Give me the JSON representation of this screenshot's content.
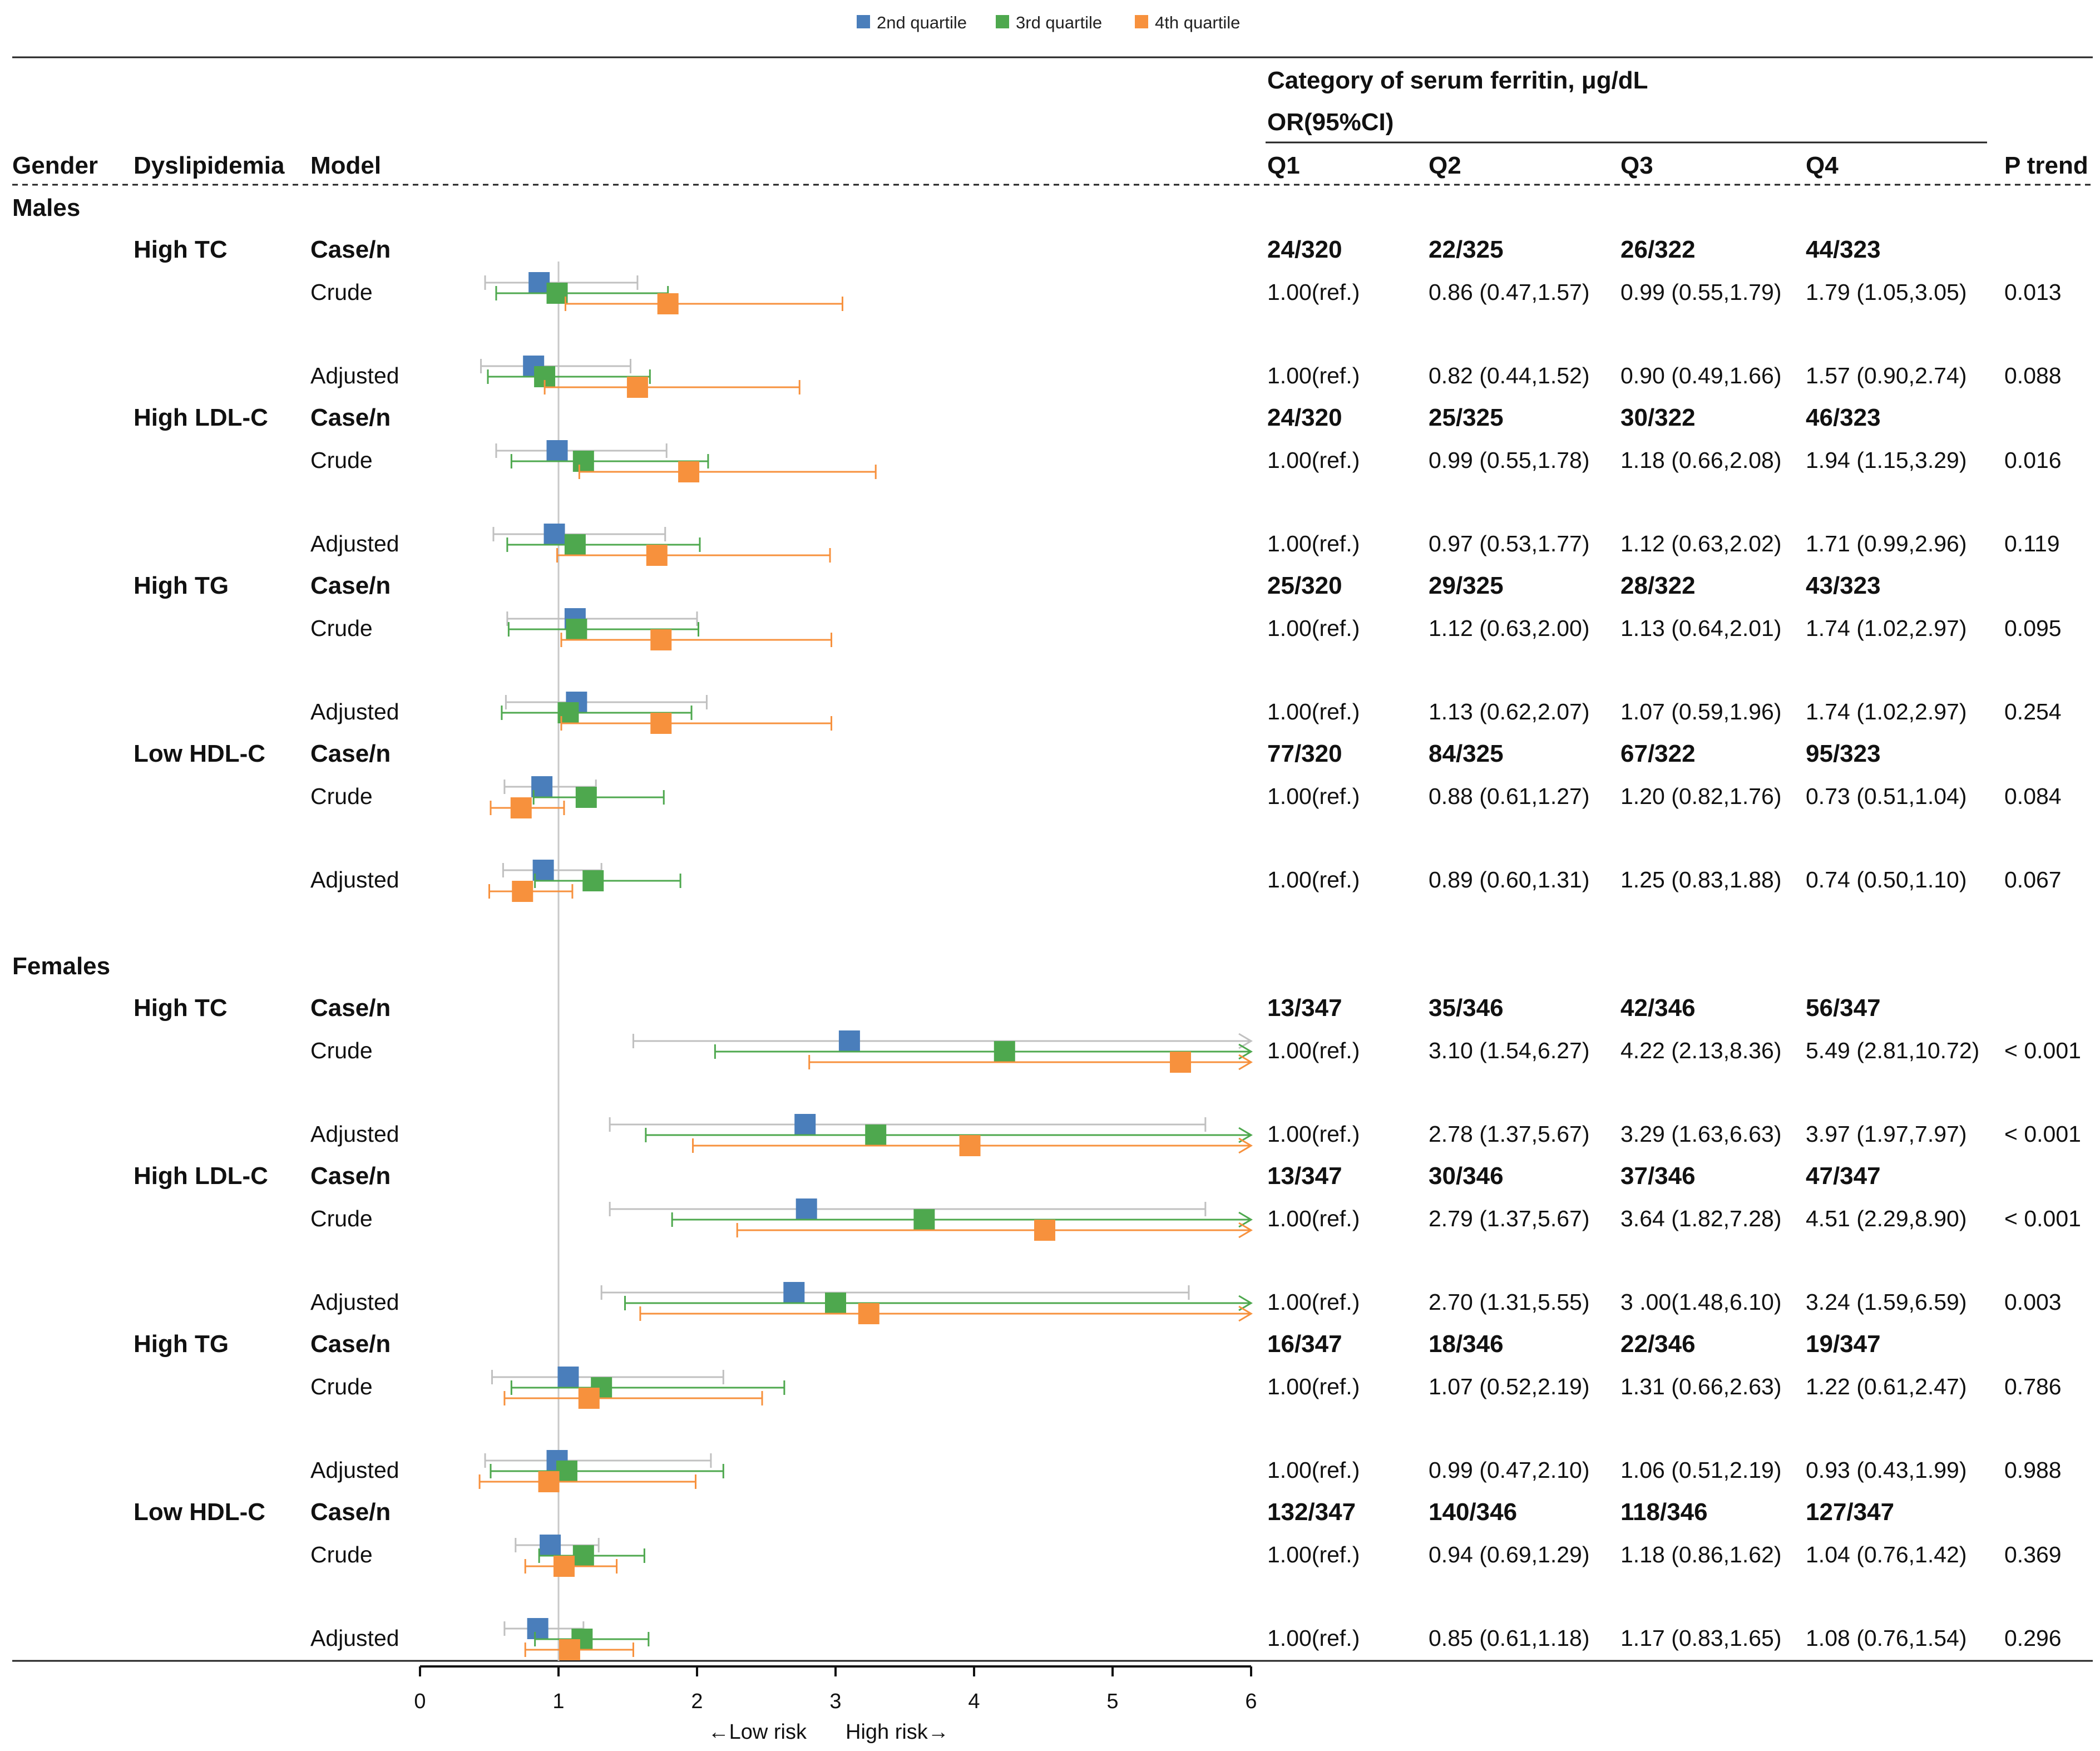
{
  "chart_data": {
    "type": "forest",
    "title": "Category of serum ferritin, μg/dL",
    "effect_label": "OR(95%CI)",
    "legend": [
      {
        "name": "2nd quartile",
        "color": "#4a7ebb"
      },
      {
        "name": "3rd quartile",
        "color": "#4ea84e"
      },
      {
        "name": "4th quartile",
        "color": "#f7913d"
      }
    ],
    "ci_colors": [
      "#c0c0c0",
      "#4ea84e",
      "#f7913d"
    ],
    "columns": {
      "gender": "Gender",
      "dyslipidemia": "Dyslipidemia",
      "model": "Model",
      "q1": "Q1",
      "q2": "Q2",
      "q3": "Q3",
      "q4": "Q4",
      "ptrend": "P trend"
    },
    "x_axis": {
      "min": 0,
      "max": 6,
      "ticks": [
        "0",
        "1",
        "2",
        "3",
        "4",
        "5",
        "6"
      ],
      "reference": 1,
      "low_label": "←Low risk",
      "high_label": "High risk→"
    },
    "groups": [
      {
        "gender": "Males",
        "outcomes": [
          {
            "name": "High TC",
            "casen": [
              "24/320",
              "22/325",
              "26/322",
              "44/323"
            ],
            "models": [
              {
                "model": "Crude",
                "ref": "1.00(ref.)",
                "q": [
                  "0.86 (0.47,1.57)",
                  "0.99 (0.55,1.79)",
                  "1.79 (1.05,3.05)"
                ],
                "p": "0.013",
                "or": [
                  0.86,
                  0.99,
                  1.79
                ],
                "lo": [
                  0.47,
                  0.55,
                  1.05
                ],
                "hi": [
                  1.57,
                  1.79,
                  3.05
                ]
              },
              {
                "model": "Adjusted",
                "ref": "1.00(ref.)",
                "q": [
                  "0.82 (0.44,1.52)",
                  "0.90 (0.49,1.66)",
                  "1.57 (0.90,2.74)"
                ],
                "p": "0.088",
                "or": [
                  0.82,
                  0.9,
                  1.57
                ],
                "lo": [
                  0.44,
                  0.49,
                  0.9
                ],
                "hi": [
                  1.52,
                  1.66,
                  2.74
                ]
              }
            ]
          },
          {
            "name": "High LDL-C",
            "casen": [
              "24/320",
              "25/325",
              "30/322",
              "46/323"
            ],
            "models": [
              {
                "model": "Crude",
                "ref": "1.00(ref.)",
                "q": [
                  "0.99 (0.55,1.78)",
                  "1.18 (0.66,2.08)",
                  "1.94 (1.15,3.29)"
                ],
                "p": "0.016",
                "or": [
                  0.99,
                  1.18,
                  1.94
                ],
                "lo": [
                  0.55,
                  0.66,
                  1.15
                ],
                "hi": [
                  1.78,
                  2.08,
                  3.29
                ]
              },
              {
                "model": "Adjusted",
                "ref": "1.00(ref.)",
                "q": [
                  "0.97 (0.53,1.77)",
                  "1.12 (0.63,2.02)",
                  "1.71 (0.99,2.96)"
                ],
                "p": "0.119",
                "or": [
                  0.97,
                  1.12,
                  1.71
                ],
                "lo": [
                  0.53,
                  0.63,
                  0.99
                ],
                "hi": [
                  1.77,
                  2.02,
                  2.96
                ]
              }
            ]
          },
          {
            "name": "High TG",
            "casen": [
              "25/320",
              "29/325",
              "28/322",
              "43/323"
            ],
            "models": [
              {
                "model": "Crude",
                "ref": "1.00(ref.)",
                "q": [
                  "1.12 (0.63,2.00)",
                  "1.13 (0.64,2.01)",
                  "1.74 (1.02,2.97)"
                ],
                "p": "0.095",
                "or": [
                  1.12,
                  1.13,
                  1.74
                ],
                "lo": [
                  0.63,
                  0.64,
                  1.02
                ],
                "hi": [
                  2.0,
                  2.01,
                  2.97
                ]
              },
              {
                "model": "Adjusted",
                "ref": "1.00(ref.)",
                "q": [
                  "1.13 (0.62,2.07)",
                  "1.07 (0.59,1.96)",
                  "1.74 (1.02,2.97)"
                ],
                "p": "0.254",
                "or": [
                  1.13,
                  1.07,
                  1.74
                ],
                "lo": [
                  0.62,
                  0.59,
                  1.02
                ],
                "hi": [
                  2.07,
                  1.96,
                  2.97
                ]
              }
            ]
          },
          {
            "name": "Low HDL-C",
            "casen": [
              "77/320",
              "84/325",
              "67/322",
              "95/323"
            ],
            "models": [
              {
                "model": "Crude",
                "ref": "1.00(ref.)",
                "q": [
                  "0.88 (0.61,1.27)",
                  "1.20 (0.82,1.76)",
                  "0.73 (0.51,1.04)"
                ],
                "p": "0.084",
                "or": [
                  0.88,
                  1.2,
                  0.73
                ],
                "lo": [
                  0.61,
                  0.82,
                  0.51
                ],
                "hi": [
                  1.27,
                  1.76,
                  1.04
                ]
              },
              {
                "model": "Adjusted",
                "ref": "1.00(ref.)",
                "q": [
                  "0.89 (0.60,1.31)",
                  "1.25 (0.83,1.88)",
                  "0.74 (0.50,1.10)"
                ],
                "p": "0.067",
                "or": [
                  0.89,
                  1.25,
                  0.74
                ],
                "lo": [
                  0.6,
                  0.83,
                  0.5
                ],
                "hi": [
                  1.31,
                  1.88,
                  1.1
                ]
              }
            ]
          }
        ]
      },
      {
        "gender": "Females",
        "outcomes": [
          {
            "name": "High TC",
            "casen": [
              "13/347",
              "35/346",
              "42/346",
              "56/347"
            ],
            "models": [
              {
                "model": "Crude",
                "ref": "1.00(ref.)",
                "q": [
                  "3.10 (1.54,6.27)",
                  "4.22 (2.13,8.36)",
                  "5.49 (2.81,10.72)"
                ],
                "p": "< 0.001",
                "or": [
                  3.1,
                  4.22,
                  5.49
                ],
                "lo": [
                  1.54,
                  2.13,
                  2.81
                ],
                "hi": [
                  6.27,
                  8.36,
                  10.72
                ]
              },
              {
                "model": "Adjusted",
                "ref": "1.00(ref.)",
                "q": [
                  "2.78 (1.37,5.67)",
                  "3.29 (1.63,6.63)",
                  "3.97 (1.97,7.97)"
                ],
                "p": "< 0.001",
                "or": [
                  2.78,
                  3.29,
                  3.97
                ],
                "lo": [
                  1.37,
                  1.63,
                  1.97
                ],
                "hi": [
                  5.67,
                  6.63,
                  7.97
                ]
              }
            ]
          },
          {
            "name": "High LDL-C",
            "casen": [
              "13/347",
              "30/346",
              "37/346",
              "47/347"
            ],
            "models": [
              {
                "model": "Crude",
                "ref": "1.00(ref.)",
                "q": [
                  "2.79 (1.37,5.67)",
                  "3.64 (1.82,7.28)",
                  "4.51 (2.29,8.90)"
                ],
                "p": "< 0.001",
                "or": [
                  2.79,
                  3.64,
                  4.51
                ],
                "lo": [
                  1.37,
                  1.82,
                  2.29
                ],
                "hi": [
                  5.67,
                  7.28,
                  8.9
                ]
              },
              {
                "model": "Adjusted",
                "ref": "1.00(ref.)",
                "q": [
                  "2.70 (1.31,5.55)",
                  "3 .00(1.48,6.10)",
                  "3.24 (1.59,6.59)"
                ],
                "p": "0.003",
                "or": [
                  2.7,
                  3.0,
                  3.24
                ],
                "lo": [
                  1.31,
                  1.48,
                  1.59
                ],
                "hi": [
                  5.55,
                  6.1,
                  6.59
                ]
              }
            ]
          },
          {
            "name": "High TG",
            "casen": [
              "16/347",
              "18/346",
              "22/346",
              "19/347"
            ],
            "models": [
              {
                "model": "Crude",
                "ref": "1.00(ref.)",
                "q": [
                  "1.07 (0.52,2.19)",
                  "1.31 (0.66,2.63)",
                  "1.22 (0.61,2.47)"
                ],
                "p": "0.786",
                "or": [
                  1.07,
                  1.31,
                  1.22
                ],
                "lo": [
                  0.52,
                  0.66,
                  0.61
                ],
                "hi": [
                  2.19,
                  2.63,
                  2.47
                ]
              },
              {
                "model": "Adjusted",
                "ref": "1.00(ref.)",
                "q": [
                  "0.99 (0.47,2.10)",
                  "1.06 (0.51,2.19)",
                  "0.93 (0.43,1.99)"
                ],
                "p": "0.988",
                "or": [
                  0.99,
                  1.06,
                  0.93
                ],
                "lo": [
                  0.47,
                  0.51,
                  0.43
                ],
                "hi": [
                  2.1,
                  2.19,
                  1.99
                ]
              }
            ]
          },
          {
            "name": "Low HDL-C",
            "casen": [
              "132/347",
              "140/346",
              "118/346",
              "127/347"
            ],
            "models": [
              {
                "model": "Crude",
                "ref": "1.00(ref.)",
                "q": [
                  "0.94 (0.69,1.29)",
                  "1.18 (0.86,1.62)",
                  "1.04 (0.76,1.42)"
                ],
                "p": "0.369",
                "or": [
                  0.94,
                  1.18,
                  1.04
                ],
                "lo": [
                  0.69,
                  0.86,
                  0.76
                ],
                "hi": [
                  1.29,
                  1.62,
                  1.42
                ]
              },
              {
                "model": "Adjusted",
                "ref": "1.00(ref.)",
                "q": [
                  "0.85 (0.61,1.18)",
                  "1.17 (0.83,1.65)",
                  "1.08 (0.76,1.54)"
                ],
                "p": "0.296",
                "or": [
                  0.85,
                  1.17,
                  1.08
                ],
                "lo": [
                  0.61,
                  0.83,
                  0.76
                ],
                "hi": [
                  1.18,
                  1.65,
                  1.54
                ]
              }
            ]
          }
        ]
      }
    ]
  }
}
